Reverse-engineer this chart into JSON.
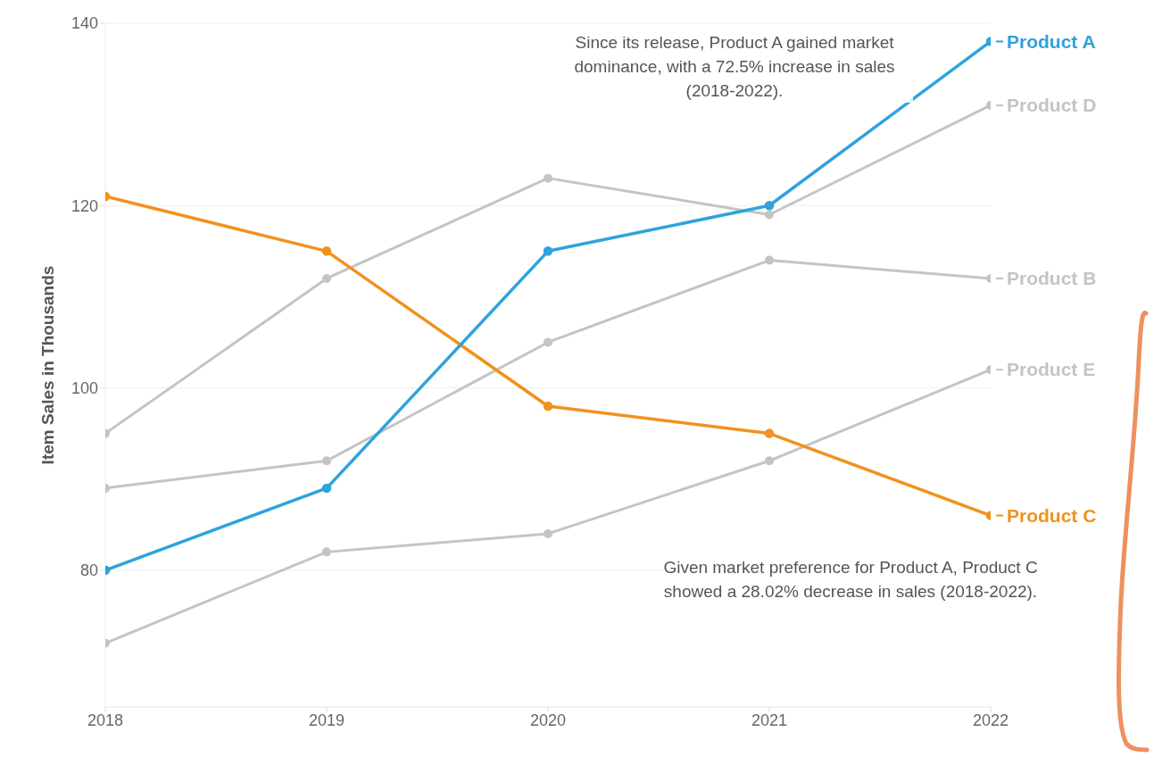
{
  "chart_data": {
    "type": "line",
    "ylabel": "Item Sales in Thousands",
    "x": [
      2018,
      2019,
      2020,
      2021,
      2022
    ],
    "xlim": [
      2018,
      2022
    ],
    "xticks": [
      2018,
      2019,
      2020,
      2021,
      2022
    ],
    "ylim": [
      65,
      140
    ],
    "yticks": [
      80,
      100,
      120,
      140
    ],
    "grid": "y",
    "legend": "right",
    "marker": "circle",
    "line_style": "solid",
    "series": [
      {
        "name": "Product D",
        "color": "#c4c4c4",
        "values": [
          95,
          112,
          123,
          119,
          131
        ]
      },
      {
        "name": "Product B",
        "color": "#c4c4c4",
        "values": [
          89,
          92,
          105,
          114,
          112
        ]
      },
      {
        "name": "Product E",
        "color": "#c4c4c4",
        "values": [
          72,
          82,
          84,
          92,
          102
        ]
      },
      {
        "name": "Product C",
        "color": "#f0921e",
        "values": [
          121,
          115,
          98,
          95,
          86
        ]
      },
      {
        "name": "Product A",
        "color": "#2ea3dc",
        "values": [
          80,
          89,
          115,
          120,
          138
        ]
      }
    ],
    "annotations": [
      "Since its release, Product A gained market dominance, with a 72.5% increase in sales (2018-2022).",
      "Given market preference for Product A, Product C showed a 28.02% decrease in sales (2018-2022)."
    ]
  }
}
